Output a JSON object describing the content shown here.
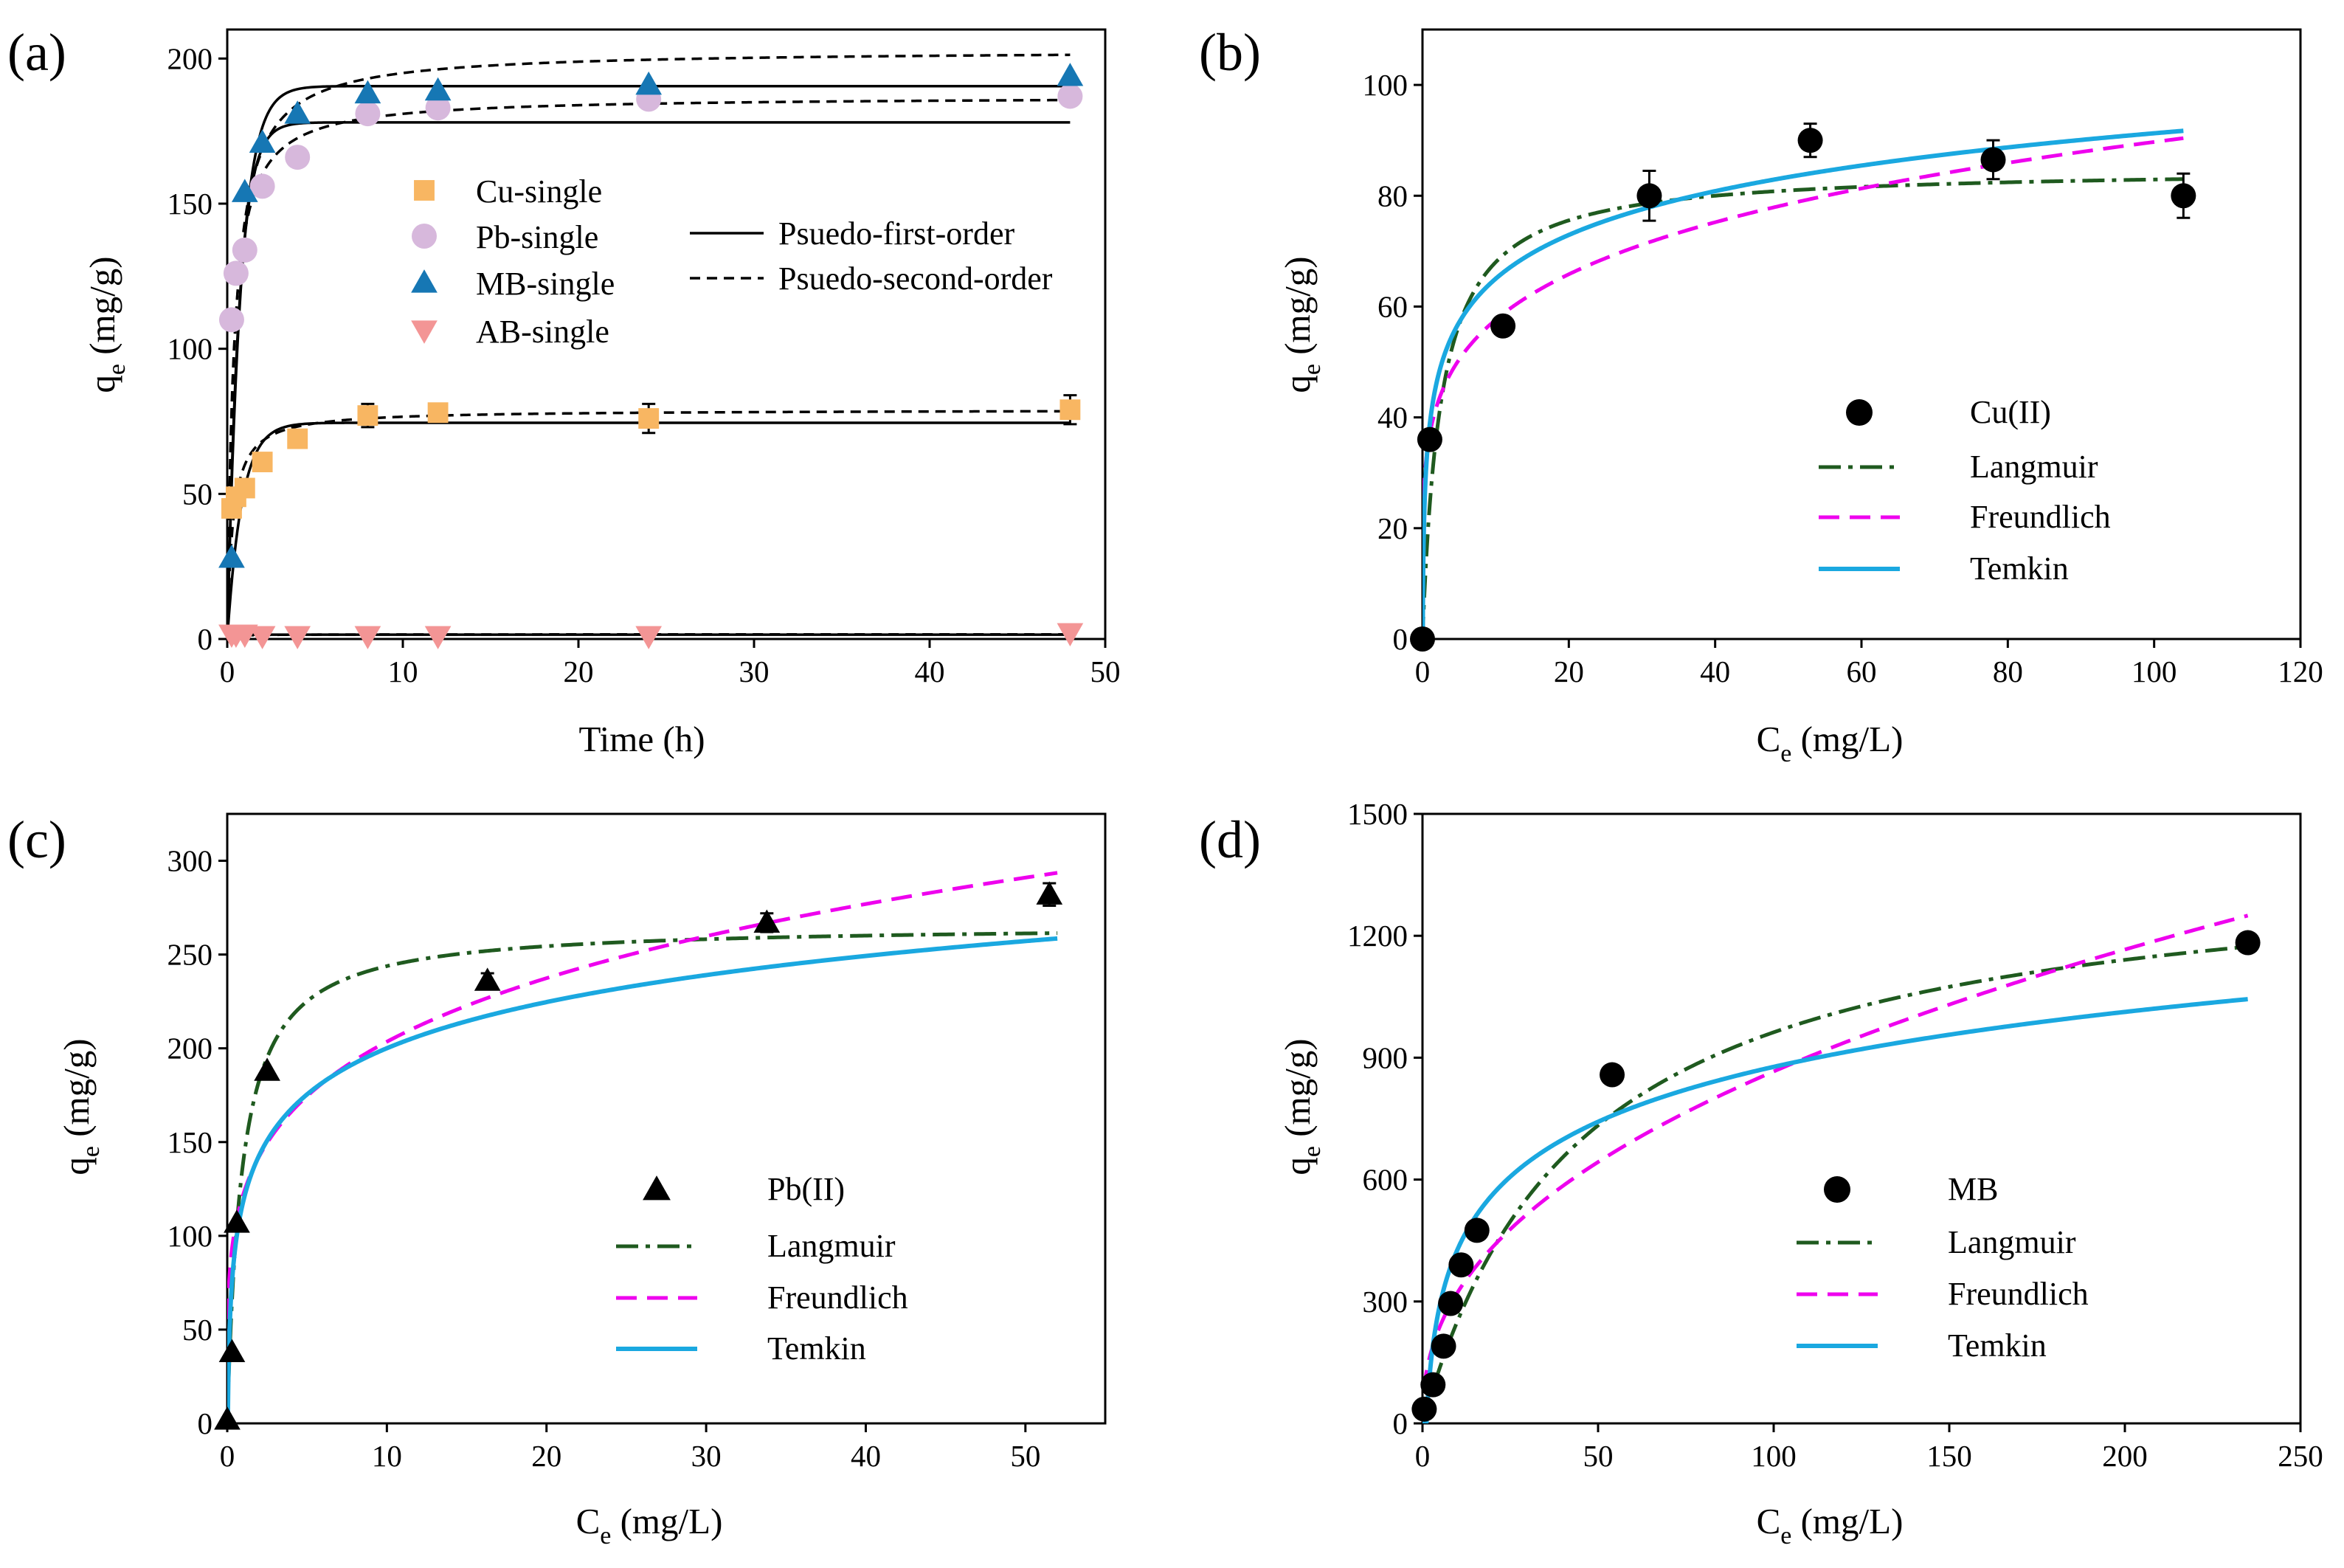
{
  "colors": {
    "cu": "#f8b662",
    "pb": "#d7b8dc",
    "mb": "#1677b4",
    "ab": "#f39595",
    "langmuir": "#1f5a1f",
    "freundlich": "#ee00ee",
    "temkin": "#1aa8e0",
    "black": "#000000"
  },
  "chart_data": [
    {
      "panel_label": "(a)",
      "type": "scatter",
      "xlabel": "Time (h)",
      "ylabel": "q",
      "ylabel_sub": "e",
      "ylabel_unit": " (mg/g)",
      "xlim": [
        0,
        50
      ],
      "ylim": [
        0,
        210
      ],
      "x_ticks": [
        0,
        10,
        20,
        30,
        40,
        50
      ],
      "y_ticks": [
        0,
        50,
        100,
        150,
        200
      ],
      "series": [
        {
          "name": "Cu-single",
          "marker": "square",
          "color": "cu",
          "x": [
            0.25,
            0.5,
            1,
            2,
            4,
            8,
            12,
            24,
            48
          ],
          "y": [
            45,
            49,
            52,
            61,
            69,
            77,
            78,
            76,
            79
          ],
          "err": [
            0,
            0,
            0,
            0,
            0,
            4,
            2,
            5,
            5
          ]
        },
        {
          "name": "Pb-single",
          "marker": "circle",
          "color": "pb",
          "x": [
            0.25,
            0.5,
            1,
            2,
            4,
            8,
            12,
            24,
            48
          ],
          "y": [
            110,
            126,
            134,
            156,
            166,
            181,
            183,
            186,
            187
          ],
          "err": [
            0,
            0,
            0,
            0,
            0,
            0,
            3,
            3,
            3
          ]
        },
        {
          "name": "MB-single",
          "marker": "triangle-up",
          "color": "mb",
          "x": [
            0.25,
            1,
            2,
            4,
            8,
            12,
            24,
            48
          ],
          "y": [
            28,
            154,
            171,
            181,
            188,
            189,
            191,
            194
          ],
          "err": [
            0,
            0,
            0,
            0,
            0,
            0,
            0,
            0
          ]
        },
        {
          "name": "AB-single",
          "marker": "triangle-down",
          "color": "ab",
          "x": [
            0.25,
            0.5,
            1,
            2,
            4,
            8,
            12,
            24,
            48
          ],
          "y": [
            1.5,
            1.5,
            1.5,
            1,
            1,
            1,
            1,
            1,
            2
          ],
          "err": [
            0,
            0,
            0,
            0,
            0,
            0,
            0,
            0,
            0
          ]
        }
      ],
      "fits": [
        {
          "model": "pfo",
          "style": "solid",
          "qe": 74.5,
          "k": 1.2
        },
        {
          "model": "pso",
          "style": "dashed",
          "qe": 79,
          "k": 0.04
        },
        {
          "model": "pfo",
          "style": "solid",
          "qe": 178,
          "k": 1.5
        },
        {
          "model": "pso",
          "style": "dashed",
          "qe": 187,
          "k": 0.016
        },
        {
          "model": "pfo",
          "style": "solid",
          "qe": 190.5,
          "k": 1.3
        },
        {
          "model": "pso",
          "style": "dashed",
          "qe": 203,
          "k": 0.012
        },
        {
          "model": "pfo",
          "style": "solid",
          "qe": 1.5,
          "k": 3
        },
        {
          "model": "pso",
          "style": "dashed",
          "qe": 1.6,
          "k": 2
        }
      ],
      "legend_markers": [
        "Cu-single",
        "Pb-single",
        "MB-single",
        "AB-single"
      ],
      "legend_lines": [
        "Psuedo-first-order",
        "Psuedo-second-order"
      ]
    },
    {
      "panel_label": "(b)",
      "type": "scatter",
      "xlabel": "C",
      "xlabel_sub": "e",
      "xlabel_unit": " (mg/L)",
      "ylabel": "q",
      "ylabel_sub": "e",
      "ylabel_unit": " (mg/g)",
      "xlim": [
        0,
        120
      ],
      "ylim": [
        0,
        110
      ],
      "x_ticks": [
        0,
        20,
        40,
        60,
        80,
        100,
        120
      ],
      "y_ticks": [
        0,
        20,
        40,
        60,
        80,
        100
      ],
      "series": [
        {
          "name": "Cu(II)",
          "marker": "circle",
          "color": "black",
          "x": [
            0,
            1,
            11,
            31,
            53,
            78,
            104
          ],
          "y": [
            0,
            36,
            56.5,
            80,
            90,
            86.5,
            80
          ],
          "err": [
            0,
            0,
            0,
            4.5,
            3,
            3.5,
            4
          ]
        }
      ],
      "fits": [
        {
          "name": "Langmuir",
          "model": "langmuir",
          "qm": 85,
          "K": 0.4
        },
        {
          "name": "Freundlich",
          "model": "freundlich",
          "Kf": 37,
          "n": 5.2
        },
        {
          "name": "Temkin",
          "model": "temkin",
          "A": 30,
          "B": 11.4
        }
      ],
      "fit_xmax": 104
    },
    {
      "panel_label": "(c)",
      "type": "scatter",
      "xlabel": "C",
      "xlabel_sub": "e",
      "xlabel_unit": " (mg/L)",
      "ylabel": "q",
      "ylabel_sub": "e",
      "ylabel_unit": " (mg/g)",
      "xlim": [
        0,
        55
      ],
      "ylim": [
        0,
        325
      ],
      "x_ticks": [
        0,
        10,
        20,
        30,
        40,
        50
      ],
      "y_ticks": [
        0,
        50,
        100,
        150,
        200,
        250,
        300
      ],
      "series": [
        {
          "name": "Pb(II)",
          "marker": "triangle-up",
          "color": "black",
          "x": [
            0,
            0.3,
            0.6,
            2.5,
            16.3,
            33.8,
            51.5
          ],
          "y": [
            2,
            38,
            107,
            188,
            236,
            267,
            282
          ],
          "err": [
            0,
            0,
            0,
            0,
            4,
            5,
            6
          ]
        }
      ],
      "fits": [
        {
          "name": "Langmuir",
          "model": "langmuir",
          "qm": 266,
          "K": 1.1
        },
        {
          "name": "Freundlich",
          "model": "freundlich",
          "Kf": 122,
          "n": 4.5
        },
        {
          "name": "Temkin",
          "model": "temkin",
          "A": 28,
          "B": 35.5
        }
      ],
      "fit_xmax": 52
    },
    {
      "panel_label": "(d)",
      "type": "scatter",
      "xlabel": "C",
      "xlabel_sub": "e",
      "xlabel_unit": " (mg/L)",
      "ylabel": "q",
      "ylabel_sub": "e",
      "ylabel_unit": " (mg/g)",
      "xlim": [
        0,
        250
      ],
      "ylim": [
        0,
        1500
      ],
      "x_ticks": [
        0,
        50,
        100,
        150,
        200,
        250
      ],
      "y_ticks": [
        0,
        300,
        600,
        900,
        1200,
        1500
      ],
      "series": [
        {
          "name": "MB",
          "marker": "circle",
          "color": "black",
          "x": [
            0.5,
            3,
            6,
            8,
            11,
            15.5,
            54,
            235
          ],
          "y": [
            35,
            95,
            190,
            295,
            390,
            475,
            858,
            1183
          ],
          "err": [
            0,
            0,
            0,
            0,
            0,
            0,
            0,
            0
          ]
        }
      ],
      "fits": [
        {
          "name": "Langmuir",
          "model": "langmuir",
          "qm": 1400,
          "K": 0.022
        },
        {
          "name": "Freundlich",
          "model": "freundlich",
          "Kf": 120,
          "n": 2.33
        },
        {
          "name": "Temkin",
          "model": "temkin",
          "A": 0.9,
          "B": 195
        }
      ],
      "fit_xmax": 235
    }
  ]
}
